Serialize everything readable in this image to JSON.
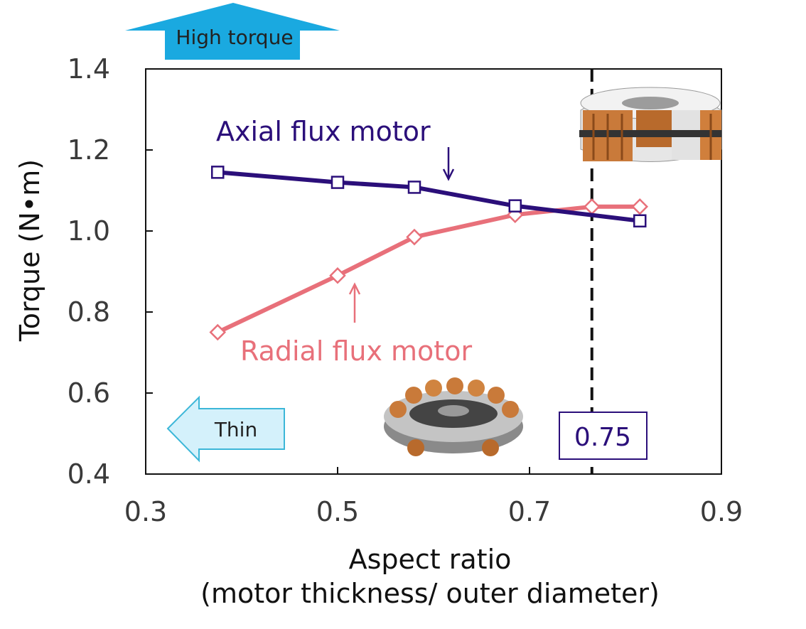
{
  "chart_data": {
    "type": "line",
    "xlabel": "Aspect ratio",
    "xlabel_sub": "(motor thickness/ outer diameter)",
    "ylabel": "Torque (N•m)",
    "xlim": [
      0.3,
      0.9
    ],
    "ylim": [
      0.4,
      1.4
    ],
    "xticks": [
      "0.3",
      "0.5",
      "0.7",
      "0.9"
    ],
    "yticks": [
      "0.4",
      "0.6",
      "0.8",
      "1.0",
      "1.2",
      "1.4"
    ],
    "grid": false,
    "series": [
      {
        "name": "Axial flux motor",
        "color": "#2b0f7a",
        "marker": "square",
        "x": [
          0.375,
          0.5,
          0.58,
          0.685,
          0.815
        ],
        "y": [
          1.145,
          1.12,
          1.108,
          1.062,
          1.025
        ]
      },
      {
        "name": "Radial flux motor",
        "color": "#e8707a",
        "marker": "diamond",
        "x": [
          0.375,
          0.5,
          0.58,
          0.685,
          0.765,
          0.815
        ],
        "y": [
          0.75,
          0.89,
          0.985,
          1.04,
          1.06,
          1.06
        ]
      }
    ],
    "reference_line": {
      "x": 0.765,
      "label": "0.75"
    },
    "annotations": {
      "high_torque": "High torque",
      "thin": "Thin"
    }
  },
  "colors": {
    "callout_fill": "#1aa9e0",
    "thin_fill": "#d4f1fb",
    "thin_stroke": "#3cb7d8"
  },
  "icons": [
    "axial-motor-icon",
    "radial-motor-icon"
  ]
}
